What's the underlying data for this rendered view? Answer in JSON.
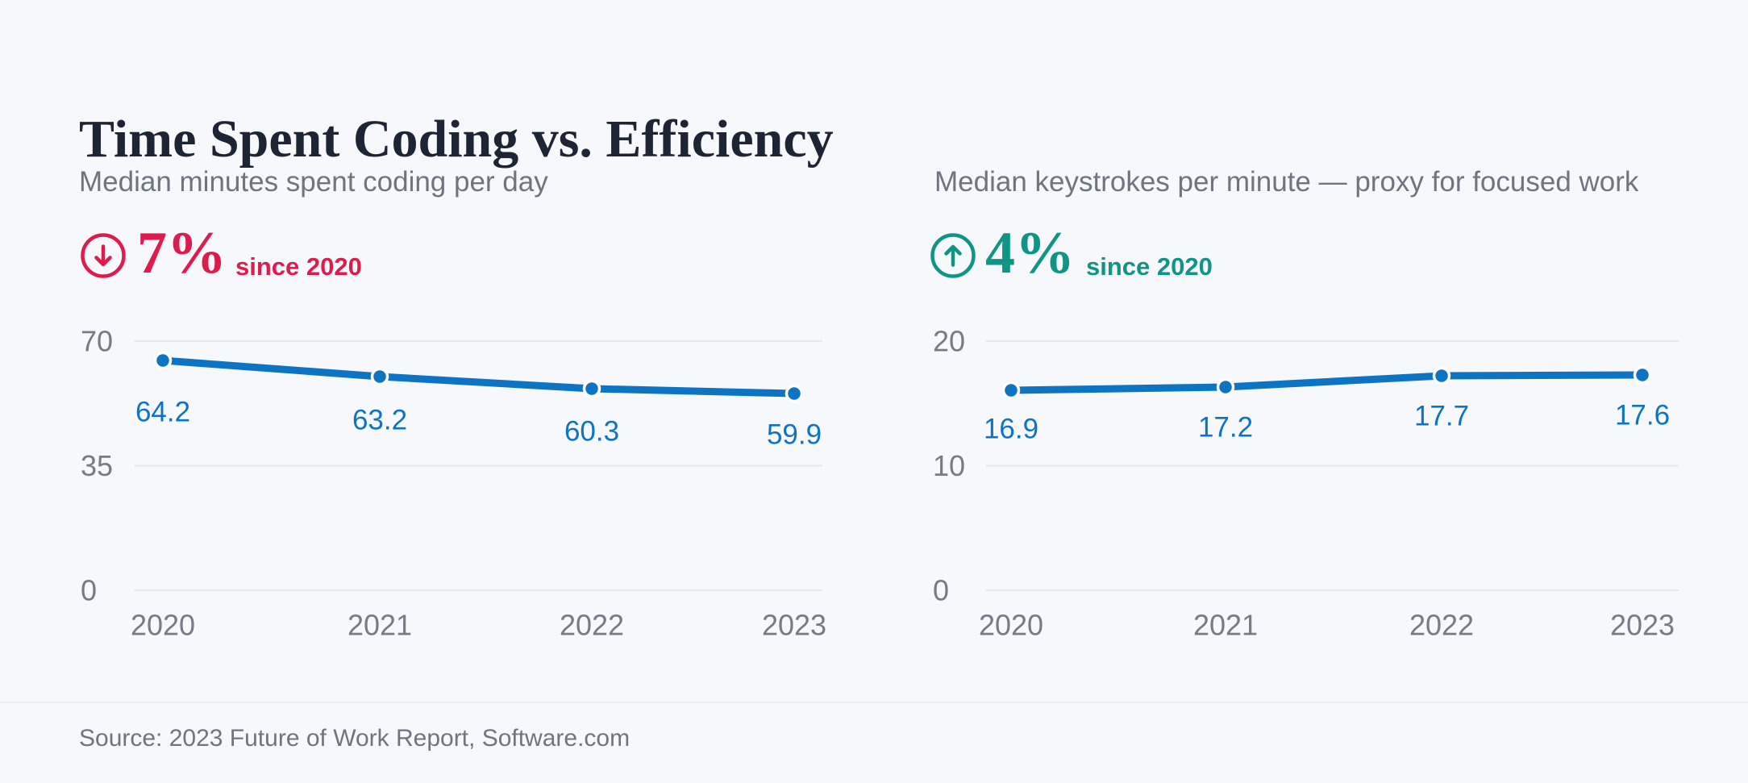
{
  "title": "Time Spent Coding vs. Efficiency",
  "source": "Source: 2023 Future of Work Report, Software.com",
  "colors": {
    "background": "#f6f8fb",
    "accent_blue": "#0d74c4",
    "negative_red": "#e01b4c",
    "positive_teal": "#0f9586",
    "text_dark": "#1d2433",
    "text_muted": "#6e7580",
    "axis_text": "#757c86",
    "gridline": "#e5e8ec"
  },
  "chart_data": [
    {
      "type": "line",
      "title": "Median minutes spent coding per day",
      "categories": [
        "2020",
        "2021",
        "2022",
        "2023"
      ],
      "values": [
        64.2,
        63.2,
        60.3,
        59.9
      ],
      "yticks": [
        0,
        35,
        70
      ],
      "ylim": [
        0,
        70
      ],
      "grid": "horizontal",
      "legend": "none",
      "series_color": "#0d74c4",
      "badge": {
        "trend": "down",
        "pct": "7%",
        "label": "since 2020",
        "color": "#e01b4c",
        "icon": "arrow-down-circle"
      }
    },
    {
      "type": "line",
      "title": "Median keystrokes per minute — proxy for focused work",
      "categories": [
        "2020",
        "2021",
        "2022",
        "2023"
      ],
      "values": [
        16.9,
        17.2,
        17.7,
        17.6
      ],
      "yticks": [
        0,
        10,
        20
      ],
      "ylim": [
        0,
        20
      ],
      "grid": "horizontal",
      "legend": "none",
      "series_color": "#0d74c4",
      "badge": {
        "trend": "up",
        "pct": "4%",
        "label": "since 2020",
        "color": "#0f9586",
        "icon": "arrow-up-circle"
      }
    }
  ]
}
